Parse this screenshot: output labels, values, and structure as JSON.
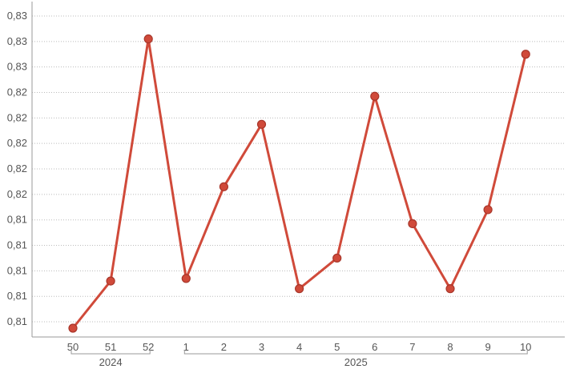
{
  "chart_data": {
    "type": "line",
    "x": [
      "50",
      "51",
      "52",
      "1",
      "2",
      "3",
      "4",
      "5",
      "6",
      "7",
      "8",
      "9",
      "10"
    ],
    "x_groups": [
      {
        "label": "2024",
        "from": 0,
        "to": 2
      },
      {
        "label": "2025",
        "from": 3,
        "to": 12
      }
    ],
    "series": [
      {
        "values": [
          0.8075,
          0.8112,
          0.8302,
          0.8114,
          0.8186,
          0.8235,
          0.8106,
          0.813,
          0.8257,
          0.8157,
          0.8106,
          0.8168,
          0.829
        ]
      }
    ],
    "y_ticks": [
      {
        "value": 0.808,
        "label": "0,81"
      },
      {
        "value": 0.81,
        "label": "0,81"
      },
      {
        "value": 0.812,
        "label": "0,81"
      },
      {
        "value": 0.814,
        "label": "0,81"
      },
      {
        "value": 0.816,
        "label": "0,81"
      },
      {
        "value": 0.818,
        "label": "0,82"
      },
      {
        "value": 0.82,
        "label": "0,82"
      },
      {
        "value": 0.822,
        "label": "0,82"
      },
      {
        "value": 0.824,
        "label": "0,82"
      },
      {
        "value": 0.826,
        "label": "0,82"
      },
      {
        "value": 0.828,
        "label": "0,83"
      },
      {
        "value": 0.83,
        "label": "0,83"
      },
      {
        "value": 0.832,
        "label": "0,83"
      }
    ],
    "ylim": [
      0.8075,
      0.832
    ],
    "grid": true,
    "legend": "none",
    "colors": {
      "line": "#d04a3a",
      "point_fill": "#d04a3a",
      "point_stroke": "#a8362a"
    }
  }
}
